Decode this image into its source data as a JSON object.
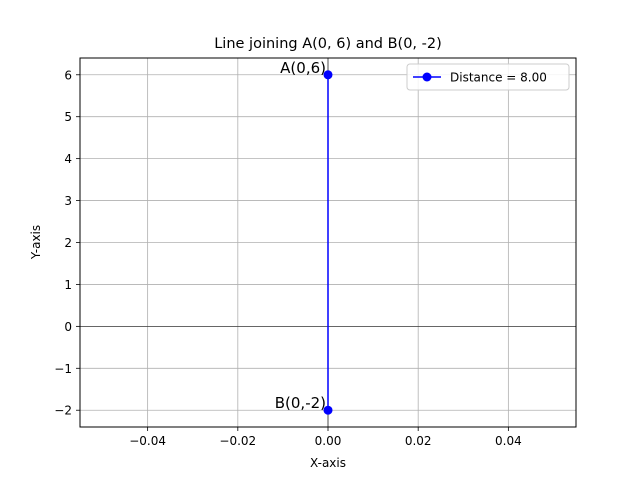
{
  "chart_data": {
    "type": "line",
    "title": "Line joining A(0, 6) and B(0, -2)",
    "xlabel": "X-axis",
    "ylabel": "Y-axis",
    "xlim": [
      -0.055,
      0.055
    ],
    "ylim": [
      -2.4,
      6.4
    ],
    "xticks": [
      -0.04,
      -0.02,
      0.0,
      0.02,
      0.04
    ],
    "xtick_labels": [
      "−0.04",
      "−0.02",
      "0.00",
      "0.02",
      "0.04"
    ],
    "yticks": [
      -2,
      -1,
      0,
      1,
      2,
      3,
      4,
      5,
      6
    ],
    "ytick_labels": [
      "−2",
      "−1",
      "0",
      "1",
      "2",
      "3",
      "4",
      "5",
      "6"
    ],
    "grid": true,
    "zero_line": true,
    "legend_position": "top-right",
    "series": [
      {
        "name": "Distance = 8.00",
        "color": "#0000ff",
        "marker": "circle",
        "x": [
          0,
          0
        ],
        "y": [
          6,
          -2
        ]
      }
    ],
    "annotations": [
      {
        "text": "A(0,6)",
        "x": 0,
        "y": 6
      },
      {
        "text": "B(0,-2)",
        "x": 0,
        "y": -2
      }
    ]
  }
}
